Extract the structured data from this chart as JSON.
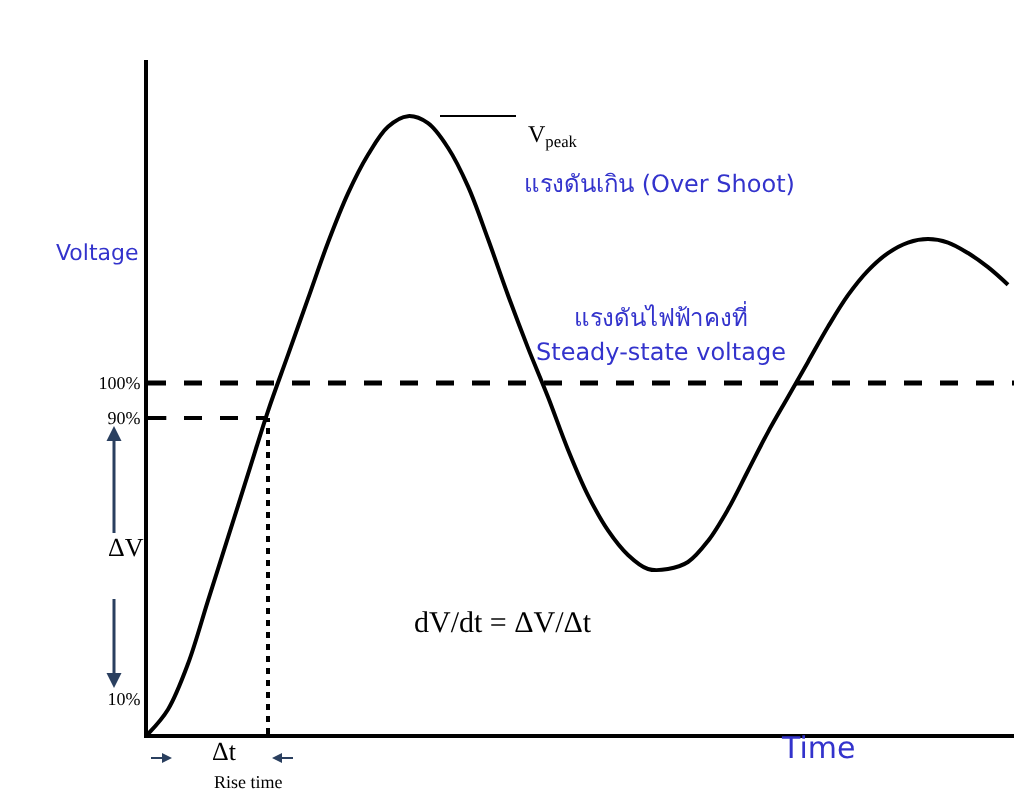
{
  "chart_data": {
    "type": "line",
    "xlabel": "Time",
    "ylabel": "Voltage",
    "categories": [
      null,
      null,
      null,
      null,
      null,
      null,
      null,
      null,
      null,
      null,
      null,
      null,
      null,
      null,
      null,
      null,
      null,
      null,
      null,
      null,
      null,
      null,
      null,
      null,
      null,
      null,
      null,
      null,
      null,
      null,
      null,
      null,
      null,
      null,
      null,
      null,
      null,
      null,
      null,
      null,
      null,
      null,
      null,
      null
    ],
    "series": [
      {
        "color": "#000000",
        "values": [
          0,
          7,
          20,
          38,
          56,
          74,
          92,
          108,
          124,
          140,
          154,
          165,
          173,
          176,
          174,
          167,
          156,
          141,
          125,
          110,
          96,
          81,
          68,
          58,
          51,
          47,
          47,
          49,
          55,
          64,
          75,
          86,
          96,
          106,
          116,
          125,
          132,
          137,
          140,
          141,
          140,
          137,
          133,
          128
        ]
      },
      {
        "color": "#000000",
        "line_style": "dashed",
        "values": [
          90,
          90,
          90,
          90,
          90,
          90,
          90,
          null,
          null,
          null,
          null,
          null,
          null,
          null,
          null,
          null,
          null,
          null,
          null,
          null,
          null,
          null,
          null,
          null,
          null,
          null,
          null,
          null,
          null,
          null,
          null,
          null,
          null,
          null,
          null,
          null,
          null,
          null,
          null,
          null,
          null,
          null,
          null,
          null
        ]
      }
    ],
    "ylim": [
      0,
      192
    ],
    "yticks": [
      {
        "value": 10,
        "label": "10%"
      },
      {
        "value": 90,
        "label": "90%"
      },
      {
        "value": 100,
        "label": "100%"
      }
    ],
    "ref_lines": [
      {
        "axis": "y",
        "value": 100,
        "label": null,
        "color": "#000000",
        "line_style": "dashed"
      }
    ],
    "annotations": [
      "V$_{peak}$",
      "แรงดันเกิน (Over Shoot)",
      "แรงดันไฟฟ้าคงที่",
      "Steady-state voltage",
      "ΔV",
      "Δt",
      "Rise time",
      "dV/dt = ΔV/Δt"
    ],
    "marker": "none",
    "line_style": "solid"
  }
}
